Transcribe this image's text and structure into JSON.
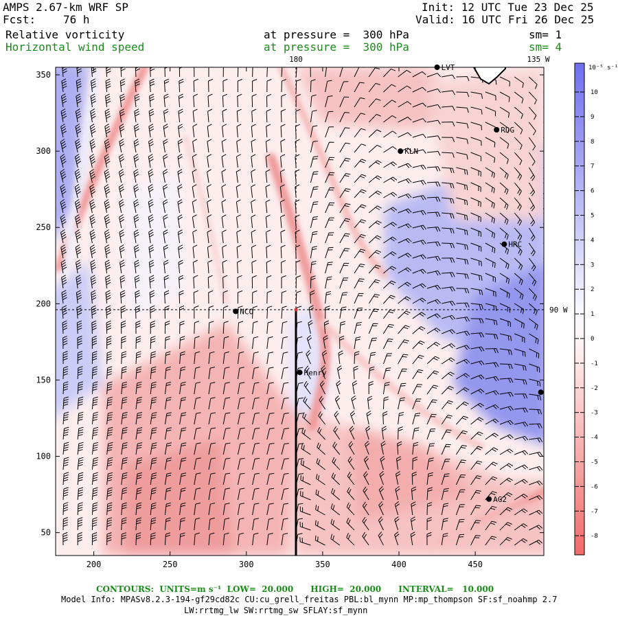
{
  "header": {
    "model": "AMPS 2.67-km WRF SP",
    "fcst_label": "Fcst:",
    "fcst_value": "76 h",
    "init": "Init: 12 UTC Tue 23 Dec 25",
    "valid": "Valid: 16 UTC Fri 26 Dec 25",
    "field1_name": "Relative vorticity",
    "field1_level": "at pressure =  300 hPa",
    "field1_sm": "sm= 1",
    "field2_name": "Horizontal wind speed",
    "field2_level": "at pressure =  300 hPa",
    "field2_sm": "sm= 4"
  },
  "map": {
    "x_ticks": [
      "200",
      "250",
      "300",
      "350",
      "400",
      "450"
    ],
    "y_ticks": [
      "350",
      "300",
      "250",
      "200",
      "150",
      "100",
      "50"
    ],
    "meridian_top_label": "180",
    "meridian_right_top_label": "135 W",
    "parallel_right_label": "90 W",
    "stations": [
      {
        "name": "LVT",
        "x": 425,
        "y": 355
      },
      {
        "name": "RDG",
        "x": 464,
        "y": 314
      },
      {
        "name": "KLN",
        "x": 401,
        "y": 300
      },
      {
        "name": "HRC",
        "x": 469,
        "y": 239
      },
      {
        "name": "NCO",
        "x": 293,
        "y": 195
      },
      {
        "name": "Henry",
        "x": 335,
        "y": 155
      },
      {
        "name": "AG2",
        "x": 459,
        "y": 72
      },
      {
        "name": "",
        "x": 493,
        "y": 142
      }
    ]
  },
  "colorbar": {
    "unit": "10⁻⁵ s⁻¹",
    "labels": [
      "10",
      "9",
      "8",
      "7",
      "6",
      "5",
      "4",
      "3",
      "2",
      "1",
      "0",
      "-1",
      "-2",
      "-3",
      "-4",
      "-5",
      "-6",
      "-7",
      "-8"
    ]
  },
  "footer": {
    "contours": "CONTOURS:  UNITS=m s⁻¹  LOW=  20.000      HIGH=  20.000      INTERVAL=   10.000",
    "model_info": "Model Info: MPASv8.2.3-194-gf29cd82c CU:cu_grell_freitas PBL:bl_mynn MP:mp_thompson SF:sf_noahmp 2.7",
    "model_info2": "LW:rrtmg_lw SW:rrtmg_sw SFLAY:sf_mynn"
  }
}
